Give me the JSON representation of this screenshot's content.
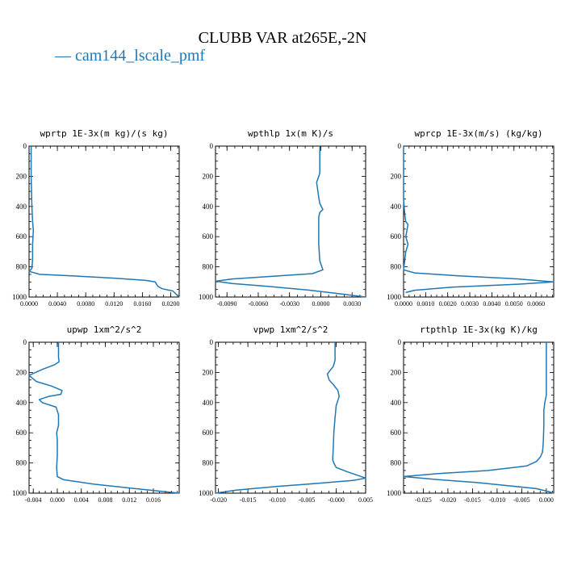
{
  "figure": {
    "title": "CLUBB VAR at265E,-2N",
    "legend_label": "— cam144_lscale_pmf",
    "line_color": "#1f77b4"
  },
  "chart_data": [
    {
      "type": "line",
      "title": "wprtp  1E-3x(m kg)/(s kg)",
      "xlim": [
        0,
        0.0212
      ],
      "ylim": [
        1000,
        0
      ],
      "xticks": [
        0.0,
        0.004,
        0.008,
        0.012,
        0.016,
        0.02
      ],
      "xtick_labels": [
        "0.0000",
        "0.0040",
        "0.0080",
        "0.0120",
        "0.0160",
        "0.0200"
      ],
      "yticks": [
        0,
        200,
        400,
        600,
        800,
        1000
      ],
      "ytick_labels": [
        "0",
        "200",
        "400",
        "600",
        "800",
        "1000"
      ],
      "series": [
        {
          "x": [
            0.0003,
            0.0003,
            0.0004,
            0.0005,
            0.0006,
            0.0005,
            0.0005,
            0.0004,
            0.0,
            0.0015,
            0.006,
            0.012,
            0.0165,
            0.0178,
            0.0182,
            0.0188,
            0.0203,
            0.0212
          ],
          "y": [
            0,
            200,
            400,
            500,
            560,
            650,
            750,
            810,
            830,
            850,
            860,
            875,
            890,
            900,
            930,
            945,
            960,
            1000
          ]
        }
      ]
    },
    {
      "type": "line",
      "title": "wpthlp  1x(m K)/s",
      "xlim": [
        -0.0101,
        0.0043
      ],
      "ylim": [
        1000,
        0
      ],
      "xticks": [
        -0.009,
        -0.006,
        -0.003,
        0.0,
        0.003
      ],
      "xtick_labels": [
        "-0.0090",
        "-0.0060",
        "-0.0030",
        "0.0000",
        "0.0030"
      ],
      "yticks": [
        0,
        200,
        400,
        600,
        800,
        1000
      ],
      "ytick_labels": [
        "0",
        "200",
        "400",
        "600",
        "800",
        "1000"
      ],
      "series": [
        {
          "x": [
            -0.0001,
            -0.0001,
            -0.0001,
            -0.0004,
            -0.0003,
            -0.0002,
            -0.0001,
            0.0002,
            -0.0001,
            -0.0002,
            -0.0002,
            -0.0002,
            -0.0001,
            0.0002,
            -0.0008,
            -0.004,
            -0.0085,
            -0.0101,
            -0.0085,
            -0.005,
            -0.001,
            0.002,
            0.0043
          ],
          "y": [
            0,
            100,
            180,
            240,
            290,
            340,
            380,
            420,
            440,
            470,
            550,
            650,
            760,
            820,
            845,
            860,
            880,
            895,
            910,
            930,
            955,
            980,
            1000
          ]
        }
      ]
    },
    {
      "type": "line",
      "title": "wprcp  1E-3x(m/s) (kg/kg)",
      "xlim": [
        0,
        0.0068
      ],
      "ylim": [
        1000,
        0
      ],
      "xticks": [
        0.0,
        0.001,
        0.002,
        0.003,
        0.004,
        0.005,
        0.006
      ],
      "xtick_labels": [
        "0.0000",
        "0.0010",
        "0.0020",
        "0.0030",
        "0.0040",
        "0.0050",
        "0.0060"
      ],
      "yticks": [
        0,
        200,
        400,
        600,
        800,
        1000
      ],
      "ytick_labels": [
        "0",
        "200",
        "400",
        "600",
        "800",
        "1000"
      ],
      "series": [
        {
          "x": [
            0.0,
            0.0,
            5e-05,
            0.0001,
            0.0002,
            0.0001,
            0.0002,
            0.0001,
            0.0,
            0.0005,
            0.0025,
            0.0052,
            0.0068,
            0.0052,
            0.0022,
            0.0005,
            0.0001
          ],
          "y": [
            0,
            350,
            450,
            500,
            520,
            600,
            650,
            700,
            820,
            840,
            860,
            880,
            900,
            915,
            935,
            955,
            970
          ]
        }
      ]
    },
    {
      "type": "line",
      "title": "upwp  1xm^2/s^2",
      "xlim": [
        -0.0047,
        0.0203
      ],
      "ylim": [
        1000,
        0
      ],
      "xticks": [
        -0.004,
        0.0,
        0.004,
        0.008,
        0.012,
        0.016
      ],
      "xtick_labels": [
        "-0.004",
        "0.000",
        "0.004",
        "0.008",
        "0.012",
        "0.016"
      ],
      "yticks": [
        0,
        200,
        400,
        600,
        800,
        1000
      ],
      "ytick_labels": [
        "0",
        "200",
        "400",
        "600",
        "800",
        "1000"
      ],
      "series": [
        {
          "x": [
            0.0002,
            0.0002,
            0.0003,
            -0.0005,
            -0.0025,
            -0.0047,
            -0.0035,
            -0.001,
            0.0008,
            0.0006,
            -0.0015,
            -0.003,
            -0.0025,
            -0.0002,
            0.0002,
            0.0002,
            -0.0001,
            0.0,
            0.0,
            -0.0001,
            0.0,
            0.001,
            0.006,
            0.013,
            0.0203
          ],
          "y": [
            0,
            100,
            130,
            150,
            180,
            220,
            260,
            290,
            320,
            345,
            360,
            380,
            400,
            430,
            480,
            550,
            600,
            650,
            750,
            830,
            890,
            910,
            940,
            970,
            1000
          ]
        }
      ]
    },
    {
      "type": "line",
      "title": "vpwp  1xm^2/s^2",
      "xlim": [
        -0.0205,
        0.005
      ],
      "ylim": [
        1000,
        0
      ],
      "xticks": [
        -0.02,
        -0.015,
        -0.01,
        -0.005,
        0.0,
        0.005
      ],
      "xtick_labels": [
        "-0.020",
        "-0.015",
        "-0.010",
        "-0.005",
        "-0.000",
        "0.005"
      ],
      "yticks": [
        0,
        200,
        400,
        600,
        800,
        1000
      ],
      "ytick_labels": [
        "0",
        "200",
        "400",
        "600",
        "800",
        "1000"
      ],
      "series": [
        {
          "x": [
            -0.0002,
            -0.0002,
            -0.0005,
            -0.0015,
            -0.0012,
            -0.0005,
            0.0003,
            0.0005,
            0.0,
            -0.0002,
            -0.0004,
            -0.0005,
            -0.0006,
            -0.0004,
            0.0,
            0.002,
            0.005,
            0.003,
            -0.003,
            -0.01,
            -0.017,
            -0.0205
          ],
          "y": [
            0,
            120,
            160,
            210,
            250,
            280,
            320,
            360,
            420,
            500,
            600,
            700,
            780,
            800,
            830,
            860,
            900,
            915,
            935,
            955,
            980,
            1000
          ]
        }
      ]
    },
    {
      "type": "line",
      "title": "rtpthlp  1E-3x(kg K)/kg",
      "xlim": [
        -0.029,
        0.0015
      ],
      "ylim": [
        1000,
        0
      ],
      "xticks": [
        -0.025,
        -0.02,
        -0.015,
        -0.01,
        -0.005,
        0.0
      ],
      "xtick_labels": [
        "-0.025",
        "-0.020",
        "-0.015",
        "-0.010",
        "-0.005",
        "0.000"
      ],
      "yticks": [
        0,
        200,
        400,
        600,
        800,
        1000
      ],
      "ytick_labels": [
        "0",
        "200",
        "400",
        "600",
        "800",
        "1000"
      ],
      "series": [
        {
          "x": [
            0.0,
            0.0,
            -0.0003,
            -0.0005,
            -0.0005,
            -0.0006,
            -0.0007,
            -0.0008,
            -0.0012,
            -0.002,
            -0.004,
            -0.012,
            -0.022,
            -0.029,
            -0.022,
            -0.014,
            -0.008,
            -0.002,
            0.0005,
            0.0015
          ],
          "y": [
            0,
            350,
            400,
            450,
            550,
            650,
            700,
            730,
            760,
            790,
            820,
            850,
            870,
            890,
            910,
            930,
            950,
            970,
            990,
            1000
          ]
        }
      ]
    }
  ]
}
